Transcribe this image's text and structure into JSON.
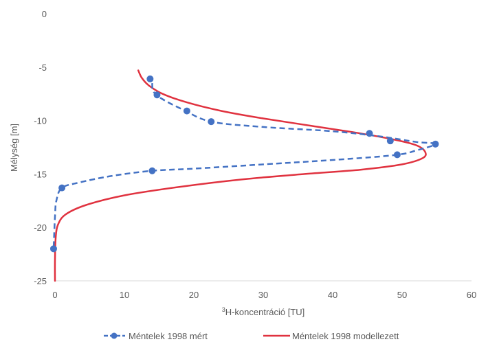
{
  "chart_data": {
    "type": "scatter",
    "title": "",
    "xlabel_super": "3",
    "xlabel_rest": "H-koncentráció [TU]",
    "ylabel": "Mélység [m]",
    "xlim": [
      0,
      60
    ],
    "ylim": [
      -25,
      0
    ],
    "x_ticks": [
      0,
      10,
      20,
      30,
      40,
      50,
      60
    ],
    "y_ticks": [
      0,
      -5,
      -10,
      -15,
      -20,
      -25
    ],
    "grid": false,
    "legend_position": "bottom",
    "series": [
      {
        "name": "Méntelek 1998 mért",
        "style": "dashed-line-markers",
        "color": "#4472c4",
        "points": [
          {
            "x": 13.7,
            "y": -6.1
          },
          {
            "x": 14.7,
            "y": -7.6
          },
          {
            "x": 19.0,
            "y": -9.1
          },
          {
            "x": 22.5,
            "y": -10.1
          },
          {
            "x": 45.3,
            "y": -11.2
          },
          {
            "x": 48.3,
            "y": -11.9
          },
          {
            "x": 54.8,
            "y": -12.2
          },
          {
            "x": 49.3,
            "y": -13.2
          },
          {
            "x": 14.0,
            "y": -14.7
          },
          {
            "x": 1.0,
            "y": -16.3
          },
          {
            "x": -0.2,
            "y": -22.0
          }
        ],
        "curve": [
          {
            "x": 14.0,
            "y": -6.5
          },
          {
            "x": 14.2,
            "y": -7.3
          },
          {
            "x": 15.5,
            "y": -8.0
          },
          {
            "x": 18.5,
            "y": -9.0
          },
          {
            "x": 22.5,
            "y": -10.1
          },
          {
            "x": 30.0,
            "y": -10.6
          },
          {
            "x": 40.0,
            "y": -11.0
          },
          {
            "x": 47.0,
            "y": -11.5
          },
          {
            "x": 52.0,
            "y": -12.0
          },
          {
            "x": 54.8,
            "y": -12.2
          },
          {
            "x": 52.0,
            "y": -12.8
          },
          {
            "x": 49.3,
            "y": -13.2
          },
          {
            "x": 42.0,
            "y": -13.6
          },
          {
            "x": 30.0,
            "y": -14.1
          },
          {
            "x": 20.0,
            "y": -14.5
          },
          {
            "x": 14.0,
            "y": -14.7
          },
          {
            "x": 8.0,
            "y": -15.2
          },
          {
            "x": 3.5,
            "y": -15.8
          },
          {
            "x": 1.0,
            "y": -16.3
          },
          {
            "x": 0.2,
            "y": -17.5
          },
          {
            "x": 0.0,
            "y": -19.0
          },
          {
            "x": -0.2,
            "y": -22.0
          }
        ]
      },
      {
        "name": "Méntelek 1998 modellezett",
        "style": "solid-line",
        "color": "#e0323f",
        "curve": [
          {
            "x": 12.0,
            "y": -5.3
          },
          {
            "x": 12.5,
            "y": -6.0
          },
          {
            "x": 13.5,
            "y": -6.7
          },
          {
            "x": 15.5,
            "y": -7.5
          },
          {
            "x": 19.0,
            "y": -8.3
          },
          {
            "x": 24.0,
            "y": -9.1
          },
          {
            "x": 30.0,
            "y": -9.8
          },
          {
            "x": 37.0,
            "y": -10.5
          },
          {
            "x": 44.0,
            "y": -11.2
          },
          {
            "x": 49.0,
            "y": -11.8
          },
          {
            "x": 52.0,
            "y": -12.3
          },
          {
            "x": 53.3,
            "y": -12.9
          },
          {
            "x": 53.0,
            "y": -13.5
          },
          {
            "x": 50.0,
            "y": -14.1
          },
          {
            "x": 44.0,
            "y": -14.6
          },
          {
            "x": 36.0,
            "y": -15.0
          },
          {
            "x": 27.0,
            "y": -15.5
          },
          {
            "x": 18.0,
            "y": -16.2
          },
          {
            "x": 10.0,
            "y": -17.0
          },
          {
            "x": 4.5,
            "y": -17.9
          },
          {
            "x": 1.5,
            "y": -18.8
          },
          {
            "x": 0.4,
            "y": -19.8
          },
          {
            "x": 0.1,
            "y": -21.0
          },
          {
            "x": 0.0,
            "y": -23.0
          },
          {
            "x": 0.0,
            "y": -25.0
          }
        ]
      }
    ]
  }
}
